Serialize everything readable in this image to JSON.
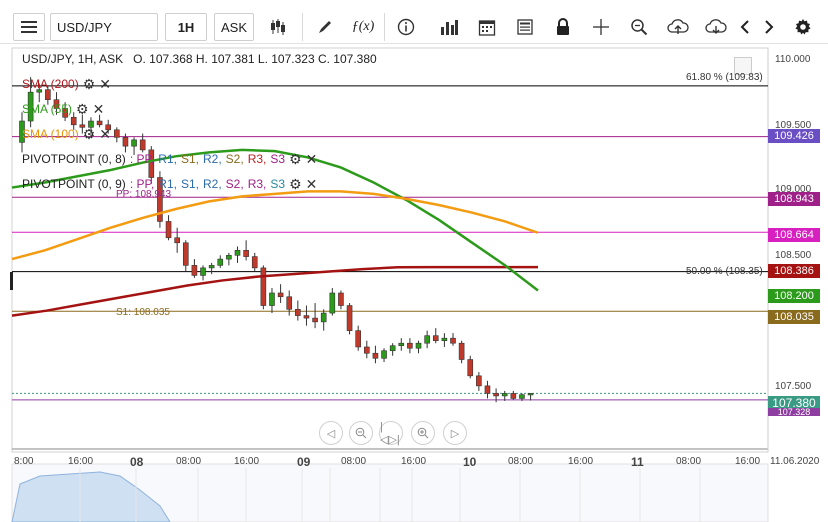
{
  "toolbar": {
    "symbol": "USD/JPY",
    "timeframe": "1H",
    "price_side": "ASK",
    "icons": [
      "menu-icon",
      "candles-icon",
      "pen-icon",
      "fx-icon",
      "info-icon",
      "volume-bars-icon",
      "calendar-icon",
      "news-icon",
      "lock-icon",
      "crosshair-icon",
      "zoom-icon",
      "cloud-upload-icon",
      "cloud-download-icon",
      "chevron-left-icon",
      "chevron-right-icon",
      "gear-icon"
    ]
  },
  "chart_info": {
    "header": "USD/JPY, 1H, ASK   O. 107.368 H. 107.381 L. 107.323 C. 107.380"
  },
  "indicators": [
    {
      "label": "SMA (200)",
      "color": "#b0171b"
    },
    {
      "label": "SMA (55)",
      "color": "#2c9a1a"
    },
    {
      "label": "SMA (100)",
      "color": "#f39c12"
    },
    {
      "label": "PIVOTPOINT (0, 8)",
      "parts": [
        ": PP, ",
        "R1, ",
        "S1, ",
        "R2, ",
        "S2, ",
        "R3, ",
        "S3"
      ]
    },
    {
      "label": "PIVOTPOINT (0, 9)",
      "parts": [
        ": PP, ",
        "R1, ",
        "S1, ",
        "R2, ",
        "S2, ",
        "R3, ",
        "S3"
      ]
    }
  ],
  "line_labels": {
    "fib_618": "61.80 % (109.83)",
    "fib_50": "50.00 % (108.35)",
    "pp": "PP: 108.943",
    "s1": "S1: 108.035"
  },
  "y_axis": {
    "ticks": [
      "110.000",
      "109.500",
      "109.000",
      "108.500",
      "107.500"
    ]
  },
  "x_axis": {
    "ticks": [
      "8:00",
      "16:00",
      "08",
      "08:00",
      "16:00",
      "09",
      "08:00",
      "16:00",
      "10",
      "08:00",
      "16:00",
      "11",
      "08:00",
      "16:00",
      "11.06.2020"
    ]
  },
  "price_tags": [
    {
      "value": "109.426",
      "color": "#6a4fc4"
    },
    {
      "value": "108.943",
      "color": "#a0208a"
    },
    {
      "value": "108.664",
      "color": "#d81fc0"
    },
    {
      "value": "108.386",
      "color": "#a41212"
    },
    {
      "value": "108.200",
      "color": "#2c9a1a"
    },
    {
      "value": "108.035",
      "color": "#8a6a1c"
    },
    {
      "value": "107.380",
      "color": "#3a9b84"
    },
    {
      "value": "107.328",
      "color": "#8e3da0"
    }
  ],
  "chart_data": {
    "type": "candlestick",
    "series": [
      {
        "name": "USD/JPY",
        "ohlc": [
          [
            109.38,
            109.62,
            109.3,
            109.55
          ],
          [
            109.55,
            109.9,
            109.5,
            109.78
          ],
          [
            109.78,
            109.85,
            109.7,
            109.8
          ],
          [
            109.8,
            109.83,
            109.68,
            109.72
          ],
          [
            109.72,
            109.78,
            109.6,
            109.65
          ],
          [
            109.65,
            109.7,
            109.55,
            109.58
          ],
          [
            109.58,
            109.62,
            109.48,
            109.52
          ],
          [
            109.52,
            109.6,
            109.45,
            109.5
          ],
          [
            109.5,
            109.58,
            109.42,
            109.55
          ],
          [
            109.55,
            109.6,
            109.5,
            109.52
          ],
          [
            109.52,
            109.56,
            109.45,
            109.48
          ],
          [
            109.48,
            109.5,
            109.38,
            109.42
          ],
          [
            109.42,
            109.45,
            109.3,
            109.35
          ],
          [
            109.35,
            109.42,
            109.28,
            109.4
          ],
          [
            109.4,
            109.45,
            109.3,
            109.32
          ],
          [
            109.32,
            109.35,
            109.05,
            109.1
          ],
          [
            109.1,
            109.15,
            108.7,
            108.75
          ],
          [
            108.75,
            108.8,
            108.6,
            108.62
          ],
          [
            108.62,
            108.7,
            108.5,
            108.58
          ],
          [
            108.58,
            108.6,
            108.35,
            108.4
          ],
          [
            108.4,
            108.45,
            108.3,
            108.32
          ],
          [
            108.32,
            108.4,
            108.28,
            108.38
          ],
          [
            108.38,
            108.42,
            108.33,
            108.4
          ],
          [
            108.4,
            108.48,
            108.38,
            108.45
          ],
          [
            108.45,
            108.5,
            108.4,
            108.48
          ],
          [
            108.48,
            108.55,
            108.42,
            108.52
          ],
          [
            108.52,
            108.6,
            108.44,
            108.47
          ],
          [
            108.47,
            108.5,
            108.35,
            108.38
          ],
          [
            108.38,
            108.4,
            108.05,
            108.08
          ],
          [
            108.08,
            108.22,
            108.02,
            108.18
          ],
          [
            108.18,
            108.25,
            108.1,
            108.15
          ],
          [
            108.15,
            108.2,
            108.0,
            108.05
          ],
          [
            108.05,
            108.12,
            107.96,
            108.0
          ],
          [
            108.0,
            108.08,
            107.92,
            107.98
          ],
          [
            107.98,
            108.1,
            107.9,
            107.95
          ],
          [
            107.95,
            108.05,
            107.88,
            108.02
          ],
          [
            108.02,
            108.22,
            108.0,
            108.18
          ],
          [
            108.18,
            108.2,
            108.05,
            108.08
          ],
          [
            108.08,
            108.1,
            107.85,
            107.88
          ],
          [
            107.88,
            107.92,
            107.72,
            107.75
          ],
          [
            107.75,
            107.8,
            107.66,
            107.7
          ],
          [
            107.7,
            107.76,
            107.62,
            107.66
          ],
          [
            107.66,
            107.74,
            107.63,
            107.72
          ],
          [
            107.72,
            107.78,
            107.68,
            107.76
          ],
          [
            107.76,
            107.82,
            107.72,
            107.78
          ],
          [
            107.78,
            107.82,
            107.7,
            107.74
          ],
          [
            107.74,
            107.8,
            107.7,
            107.78
          ],
          [
            107.78,
            107.88,
            107.74,
            107.84
          ],
          [
            107.84,
            107.9,
            107.78,
            107.8
          ],
          [
            107.8,
            107.86,
            107.75,
            107.82
          ],
          [
            107.82,
            107.86,
            107.76,
            107.78
          ],
          [
            107.78,
            107.8,
            107.62,
            107.65
          ],
          [
            107.65,
            107.68,
            107.5,
            107.52
          ],
          [
            107.52,
            107.55,
            107.4,
            107.44
          ],
          [
            107.44,
            107.48,
            107.34,
            107.38
          ],
          [
            107.38,
            107.42,
            107.31,
            107.36
          ],
          [
            107.36,
            107.4,
            107.32,
            107.38
          ],
          [
            107.38,
            107.4,
            107.33,
            107.34
          ],
          [
            107.34,
            107.38,
            107.32,
            107.37
          ],
          [
            107.368,
            107.381,
            107.323,
            107.38
          ]
        ]
      },
      {
        "name": "SMA (200)",
        "values": [
          108.0,
          108.04,
          108.09,
          108.14,
          108.19,
          108.24,
          108.28,
          108.31,
          108.33,
          108.35,
          108.37,
          108.385,
          108.386,
          108.386,
          108.386,
          108.386
        ]
      },
      {
        "name": "SMA (55)",
        "values": [
          109.02,
          109.06,
          109.11,
          109.16,
          109.22,
          109.27,
          109.3,
          109.32,
          109.31,
          109.26,
          109.18,
          109.06,
          108.92,
          108.76,
          108.58,
          108.4,
          108.2
        ]
      },
      {
        "name": "SMA (100)",
        "values": [
          108.45,
          108.52,
          108.61,
          108.7,
          108.78,
          108.85,
          108.91,
          108.95,
          108.97,
          108.99,
          108.99,
          108.97,
          108.93,
          108.88,
          108.82,
          108.75,
          108.66
        ]
      }
    ],
    "ylim": [
      107.2,
      110.1
    ]
  }
}
